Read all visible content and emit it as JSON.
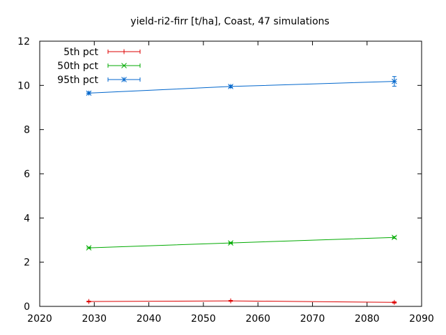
{
  "chart_data": {
    "type": "line",
    "title": "yield-ri2-firr [t/ha], Coast, 47 simulations",
    "xlabel": "",
    "ylabel": "",
    "xlim": [
      2020,
      2090
    ],
    "ylim": [
      0,
      12
    ],
    "xticks": [
      2020,
      2030,
      2040,
      2050,
      2060,
      2070,
      2080,
      2090
    ],
    "yticks": [
      0,
      2,
      4,
      6,
      8,
      10,
      12
    ],
    "grid": false,
    "legend_position": "top-left",
    "x": [
      2029,
      2055,
      2085
    ],
    "series": [
      {
        "name": "5th pct",
        "color": "#dd0000",
        "marker": "plus",
        "values": [
          0.22,
          0.25,
          0.18
        ],
        "error": [
          0.02,
          0.02,
          0.03
        ]
      },
      {
        "name": "50th pct",
        "color": "#00aa00",
        "marker": "cross",
        "values": [
          2.65,
          2.87,
          3.12
        ],
        "error": [
          0.03,
          0.03,
          0.04
        ]
      },
      {
        "name": "95th pct",
        "color": "#0066cc",
        "marker": "star",
        "values": [
          9.65,
          9.95,
          10.18
        ],
        "error": [
          0.05,
          0.05,
          0.22
        ]
      }
    ]
  }
}
